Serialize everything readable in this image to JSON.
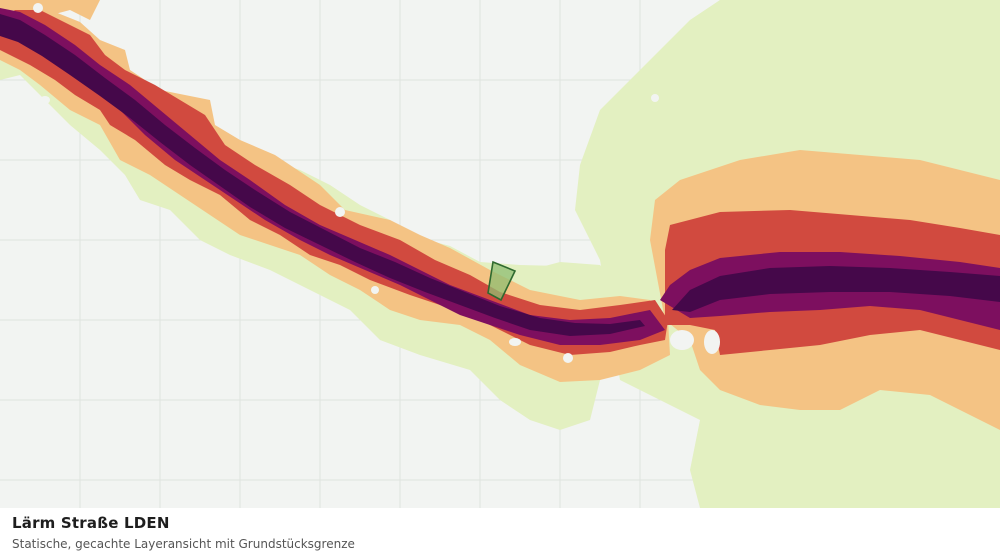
{
  "legend": {
    "title": "Lärm Straße LDEN",
    "subtitle": "Statische, gecachte Layeransicht mit Grundstücksgrenze"
  },
  "colors": {
    "background": "#f2f4f2",
    "grid": "#dfe3df",
    "band_1_outer": "#e3f0c1",
    "band_2": "#f4c384",
    "band_3": "#d14a3f",
    "band_4": "#7d0f5f",
    "band_5_core": "#45084a",
    "parcel_fill": "#8fbe72",
    "parcel_stroke": "#2f6a2f"
  },
  "icons": {
    "parcel": "parcel-boundary-polygon"
  }
}
